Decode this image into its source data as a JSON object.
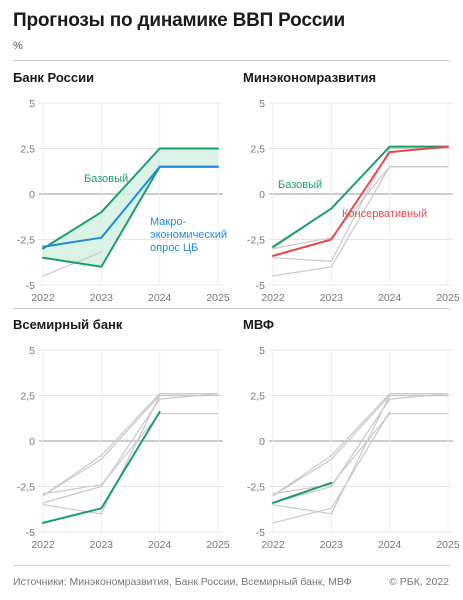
{
  "header": {
    "title": "Прогнозы по динамике ВВП России",
    "unit": "%"
  },
  "footer": {
    "sources": "Источники: Минэкономразвития, Банк России, Всемирный банк, МВФ",
    "copyright": "© РБК, 2022"
  },
  "colors": {
    "green": "#1a9e6a",
    "blue": "#1d8cdb",
    "red": "#e5484d",
    "grey": "#c8c8c8",
    "band": "#d5f0e3"
  },
  "chart_data": [
    {
      "type": "line",
      "title": "Банк России",
      "x": [
        "2022",
        "2023",
        "2024",
        "2025"
      ],
      "ylim": [
        -5,
        5
      ],
      "yticks": [
        "5",
        "2,5",
        "0",
        "-2,5",
        "-5"
      ],
      "band": {
        "upper": [
          -3.0,
          -1.0,
          2.5,
          2.5
        ],
        "lower": [
          -3.5,
          -4.0,
          1.5,
          1.5
        ]
      },
      "series": [
        {
          "values": [
            -3.0,
            -1.0,
            2.5,
            2.5
          ],
          "color": "green",
          "role": "highlight"
        },
        {
          "values": [
            -3.5,
            -4.0,
            1.5,
            1.5
          ],
          "color": "green",
          "role": "highlight"
        },
        {
          "values": [
            -2.9,
            -2.4,
            1.5,
            1.5
          ],
          "color": "blue",
          "role": "highlight"
        },
        {
          "values": [
            -4.5,
            -3.2,
            null,
            null
          ],
          "color": "grey",
          "role": "background"
        }
      ],
      "annotations": [
        {
          "text": "Базовый",
          "color": "green"
        },
        {
          "text": "Макро-",
          "color": "blue"
        },
        {
          "text": "экономический",
          "color": "blue"
        },
        {
          "text": "опрос ЦБ",
          "color": "blue"
        }
      ]
    },
    {
      "type": "line",
      "title": "Минэкономразвития",
      "x": [
        "2022",
        "2023",
        "2024",
        "2025"
      ],
      "ylim": [
        -5,
        5
      ],
      "yticks": [
        "5",
        "2,5",
        "0",
        "-2,5",
        "-5"
      ],
      "series": [
        {
          "values": [
            -3.0,
            -0.8,
            2.6,
            2.6
          ],
          "color": "grey",
          "role": "background"
        },
        {
          "values": [
            -3.5,
            -3.7,
            2.5,
            2.5
          ],
          "color": "grey",
          "role": "background"
        },
        {
          "values": [
            -4.5,
            -4.0,
            1.5,
            1.5
          ],
          "color": "grey",
          "role": "background"
        },
        {
          "values": [
            -3.0,
            -2.4,
            1.5,
            1.5
          ],
          "color": "grey",
          "role": "background"
        },
        {
          "values": [
            -2.9,
            -0.8,
            2.6,
            2.6
          ],
          "color": "green",
          "role": "highlight"
        },
        {
          "values": [
            -3.4,
            -2.5,
            2.3,
            2.6
          ],
          "color": "red",
          "role": "highlight"
        }
      ],
      "annotations": [
        {
          "text": "Базовый",
          "color": "green"
        },
        {
          "text": "Консервативный",
          "color": "red"
        }
      ]
    },
    {
      "type": "line",
      "title": "Всемирный банк",
      "x": [
        "2022",
        "2023",
        "2024",
        "2025"
      ],
      "ylim": [
        -5,
        5
      ],
      "yticks": [
        "5",
        "2,5",
        "0",
        "-2,5",
        "-5"
      ],
      "series": [
        {
          "values": [
            -3.0,
            -0.8,
            2.6,
            2.6
          ],
          "color": "grey",
          "role": "background"
        },
        {
          "values": [
            -3.5,
            -4.0,
            2.5,
            2.5
          ],
          "color": "grey",
          "role": "background"
        },
        {
          "values": [
            -2.9,
            -2.4,
            1.5,
            1.5
          ],
          "color": "grey",
          "role": "background"
        },
        {
          "values": [
            -3.4,
            -2.5,
            2.3,
            2.6
          ],
          "color": "grey",
          "role": "background"
        },
        {
          "values": [
            -3.0,
            -1.0,
            2.5,
            2.5
          ],
          "color": "grey",
          "role": "background"
        },
        {
          "values": [
            -4.5,
            -3.7,
            1.6,
            null
          ],
          "color": "green",
          "role": "highlight"
        }
      ],
      "annotations": []
    },
    {
      "type": "line",
      "title": "МВФ",
      "x": [
        "2022",
        "2023",
        "2024",
        "2025"
      ],
      "ylim": [
        -5,
        5
      ],
      "yticks": [
        "5",
        "2,5",
        "0",
        "-2,5",
        "-5"
      ],
      "series": [
        {
          "values": [
            -3.0,
            -0.8,
            2.6,
            2.6
          ],
          "color": "grey",
          "role": "background"
        },
        {
          "values": [
            -3.5,
            -4.0,
            2.5,
            2.5
          ],
          "color": "grey",
          "role": "background"
        },
        {
          "values": [
            -2.9,
            -2.4,
            1.5,
            1.5
          ],
          "color": "grey",
          "role": "background"
        },
        {
          "values": [
            -3.4,
            -2.5,
            2.3,
            2.6
          ],
          "color": "grey",
          "role": "background"
        },
        {
          "values": [
            -4.5,
            -3.7,
            1.6,
            null
          ],
          "color": "grey",
          "role": "background"
        },
        {
          "values": [
            -3.0,
            -1.0,
            2.5,
            2.5
          ],
          "color": "grey",
          "role": "background"
        },
        {
          "values": [
            -3.4,
            -2.3,
            null,
            null
          ],
          "color": "green",
          "role": "highlight"
        }
      ],
      "annotations": []
    }
  ]
}
